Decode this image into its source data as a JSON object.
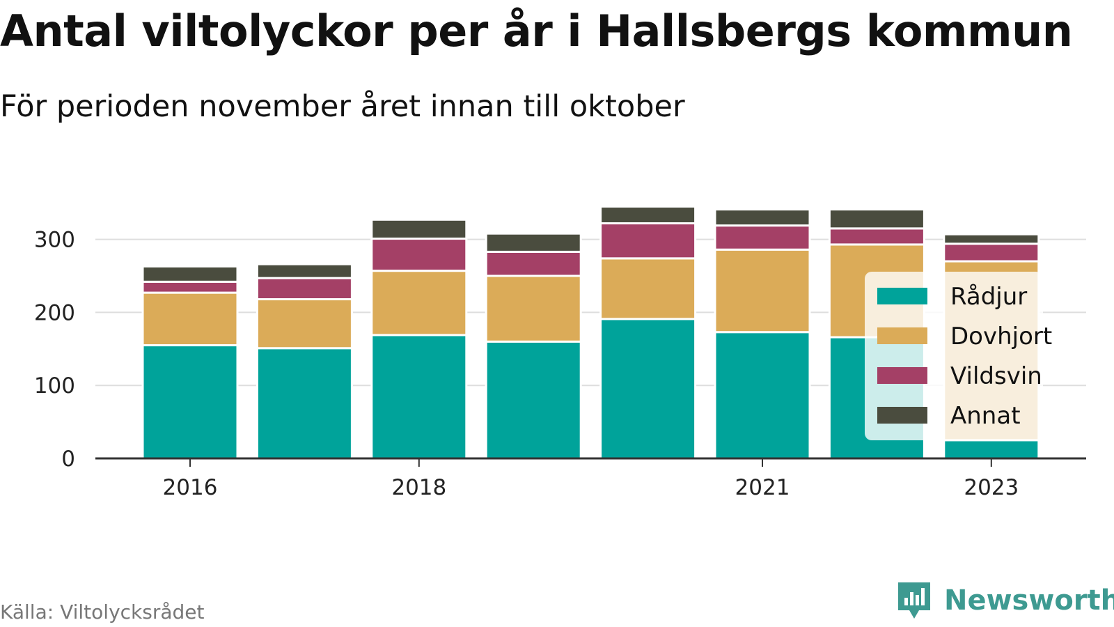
{
  "title": "Antal viltolyckor per år i Hallsbergs kommun",
  "subtitle": "För perioden november året innan till oktober",
  "source": "Källa: Viltolycksrådet",
  "brand": {
    "name": "Newsworthy",
    "icon": "newsworthy-logo-icon",
    "color": "#3e9a91"
  },
  "chart_data": {
    "type": "bar",
    "stacked": true,
    "categories": [
      "2016",
      "2017",
      "2018",
      "2019",
      "2020",
      "2021",
      "2022",
      "2023"
    ],
    "x_tick_labels": [
      "2016",
      "2018",
      "2021",
      "2023"
    ],
    "series": [
      {
        "name": "Rådjur",
        "color": "#00a39a",
        "values": [
          155,
          151,
          169,
          160,
          191,
          173,
          166,
          25
        ]
      },
      {
        "name": "Dovhjort",
        "color": "#dbab58",
        "values": [
          72,
          67,
          88,
          90,
          83,
          113,
          127,
          245
        ]
      },
      {
        "name": "Vildsvin",
        "color": "#a44066",
        "values": [
          15,
          29,
          44,
          33,
          48,
          33,
          22,
          24
        ]
      },
      {
        "name": "Annat",
        "color": "#4a4c3e",
        "values": [
          21,
          19,
          26,
          25,
          23,
          22,
          26,
          13
        ]
      }
    ],
    "ylim": [
      0,
      330
    ],
    "yticks": [
      0,
      100,
      200,
      300
    ],
    "grid": true,
    "legend_position": "right"
  }
}
